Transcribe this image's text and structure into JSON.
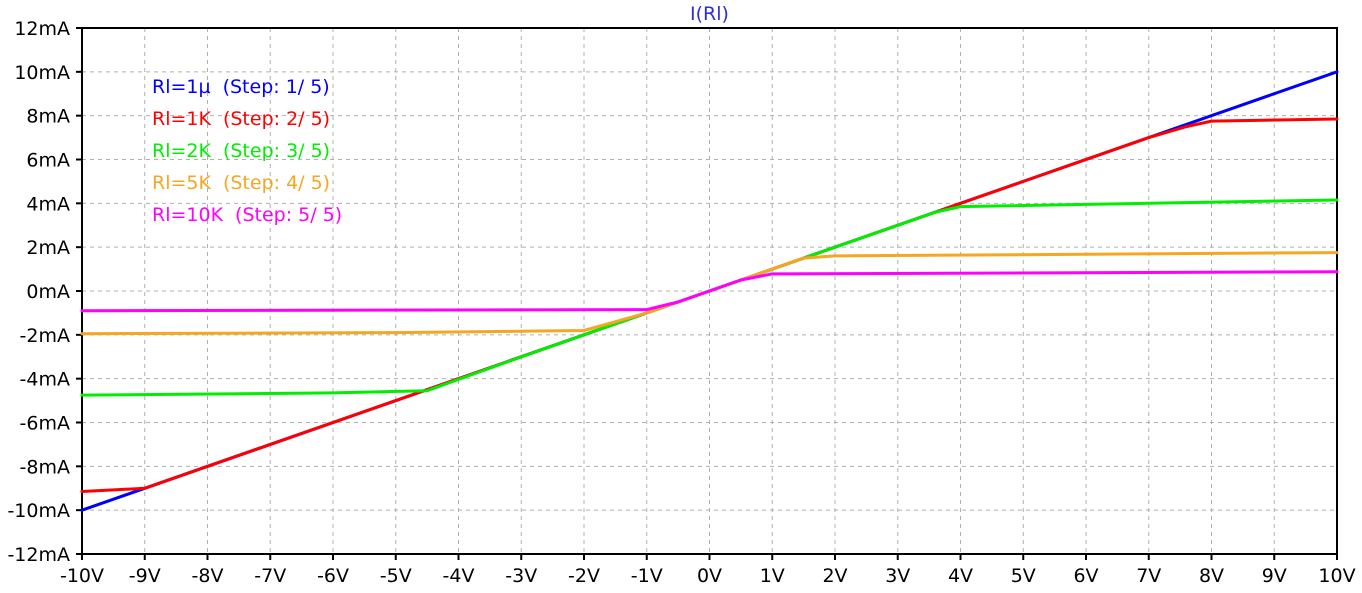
{
  "chart_data": {
    "type": "line",
    "title": "I(Rl)",
    "title_color": "#2f2fd0",
    "xlabel": "",
    "ylabel": "",
    "xlim": [
      -10,
      10
    ],
    "ylim": [
      -12,
      12
    ],
    "grid": true,
    "legend_position": "top-left",
    "x_ticks": [
      -10,
      -9,
      -8,
      -7,
      -6,
      -5,
      -4,
      -3,
      -2,
      -1,
      0,
      1,
      2,
      3,
      4,
      5,
      6,
      7,
      8,
      9,
      10
    ],
    "x_tick_labels": [
      "-10V",
      "-9V",
      "-8V",
      "-7V",
      "-6V",
      "-5V",
      "-4V",
      "-3V",
      "-2V",
      "-1V",
      "0V",
      "1V",
      "2V",
      "3V",
      "4V",
      "5V",
      "6V",
      "7V",
      "8V",
      "9V",
      "10V"
    ],
    "y_ticks": [
      12,
      10,
      8,
      6,
      4,
      2,
      0,
      -2,
      -4,
      -6,
      -8,
      -10,
      -12
    ],
    "y_tick_labels": [
      "12mA",
      "10mA",
      "8mA",
      "6mA",
      "4mA",
      "2mA",
      "0mA",
      "-2mA",
      "-4mA",
      "-6mA",
      "-8mA",
      "-10mA",
      "-12mA"
    ],
    "series": [
      {
        "name": "Rl=1µ  (Step: 1/ 5)",
        "legend_label": "Rl=1µ",
        "legend_step": "(Step: 1/ 5)",
        "color": "#0000ff",
        "x": [
          -10,
          10
        ],
        "y": [
          -10,
          10
        ]
      },
      {
        "name": "Rl=1K  (Step: 2/ 5)",
        "legend_label": "Rl=1K",
        "legend_step": "(Step: 2/ 5)",
        "color": "#ff0000",
        "x": [
          -10,
          -9,
          -7,
          0,
          7,
          7.6,
          8,
          10
        ],
        "y": [
          -9.15,
          -9.0,
          -7.0,
          0,
          7.0,
          7.5,
          7.75,
          7.85
        ]
      },
      {
        "name": "Rl=2K  (Step: 3/ 5)",
        "legend_label": "Rl=2K",
        "legend_step": "(Step: 3/ 5)",
        "color": "#00ee00",
        "x": [
          -10,
          -6,
          -4.5,
          -3,
          0,
          3,
          3.6,
          4,
          10
        ],
        "y": [
          -4.75,
          -4.65,
          -4.55,
          -3.0,
          0,
          3.0,
          3.6,
          3.85,
          4.15
        ]
      },
      {
        "name": "Rl=5K  (Step: 4/ 5)",
        "legend_label": "Rl=5K",
        "legend_step": "(Step: 4/ 5)",
        "color": "#f5a623",
        "x": [
          -10,
          -5,
          -2,
          -1,
          0,
          1,
          1.5,
          2,
          10
        ],
        "y": [
          -1.95,
          -1.9,
          -1.8,
          -1.0,
          0,
          1.0,
          1.5,
          1.6,
          1.75
        ]
      },
      {
        "name": "Rl=10K  (Step: 5/ 5)",
        "legend_label": "Rl=10K",
        "legend_step": "(Step: 5/ 5)",
        "color": "#ff00ff",
        "x": [
          -10,
          -1,
          -0.5,
          0,
          0.5,
          1,
          10
        ],
        "y": [
          -0.9,
          -0.85,
          -0.5,
          0,
          0.5,
          0.78,
          0.88
        ]
      }
    ]
  }
}
